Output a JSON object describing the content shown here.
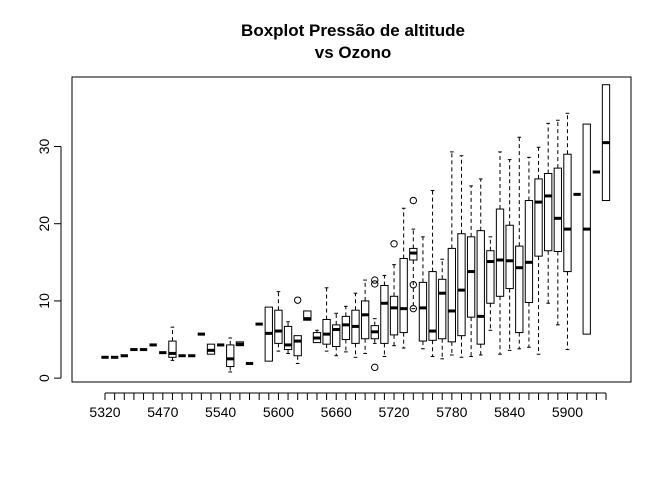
{
  "chart_data": {
    "type": "boxplot",
    "title": "Boxplot Pressão de altitude",
    "subtitle": "vs Ozono",
    "xlabel": "",
    "ylabel": "",
    "ylim": [
      -0.5,
      39
    ],
    "y_ticks": [
      0,
      10,
      20,
      30
    ],
    "x_tick_labels": [
      "5320",
      "5470",
      "5540",
      "5600",
      "5660",
      "5720",
      "5780",
      "5840",
      "5900"
    ],
    "grid": false,
    "legend": "none",
    "boxes": [
      {
        "min": 2.7,
        "q1": 2.7,
        "median": 2.7,
        "q3": 2.7,
        "max": 2.7,
        "outliers": []
      },
      {
        "min": 2.7,
        "q1": 2.7,
        "median": 2.7,
        "q3": 2.7,
        "max": 2.7,
        "outliers": []
      },
      {
        "min": 2.9,
        "q1": 2.9,
        "median": 2.9,
        "q3": 2.9,
        "max": 2.9,
        "outliers": []
      },
      {
        "min": 3.7,
        "q1": 3.7,
        "median": 3.7,
        "q3": 3.7,
        "max": 3.7,
        "outliers": []
      },
      {
        "min": 3.7,
        "q1": 3.7,
        "median": 3.7,
        "q3": 3.7,
        "max": 3.7,
        "outliers": []
      },
      {
        "min": 4.3,
        "q1": 4.3,
        "median": 4.3,
        "q3": 4.3,
        "max": 4.3,
        "outliers": []
      },
      {
        "min": 3.3,
        "q1": 3.3,
        "median": 3.3,
        "q3": 3.3,
        "max": 3.3,
        "outliers": []
      },
      {
        "min": 2.3,
        "q1": 2.7,
        "median": 3.2,
        "q3": 4.8,
        "max": 6.6,
        "outliers": []
      },
      {
        "min": 2.9,
        "q1": 2.9,
        "median": 2.9,
        "q3": 2.9,
        "max": 2.9,
        "outliers": []
      },
      {
        "min": 2.9,
        "q1": 2.9,
        "median": 2.9,
        "q3": 2.9,
        "max": 2.9,
        "outliers": []
      },
      {
        "min": 5.7,
        "q1": 5.7,
        "median": 5.7,
        "q3": 5.7,
        "max": 5.7,
        "outliers": []
      },
      {
        "min": 3.1,
        "q1": 3.1,
        "median": 3.6,
        "q3": 4.4,
        "max": 4.4,
        "outliers": []
      },
      {
        "min": 4.3,
        "q1": 4.3,
        "median": 4.3,
        "q3": 4.3,
        "max": 4.3,
        "outliers": []
      },
      {
        "min": 0.8,
        "q1": 1.5,
        "median": 2.5,
        "q3": 4.3,
        "max": 5.2,
        "outliers": []
      },
      {
        "min": 4.2,
        "q1": 4.2,
        "median": 4.4,
        "q3": 4.7,
        "max": 4.7,
        "outliers": []
      },
      {
        "min": 1.9,
        "q1": 1.9,
        "median": 1.9,
        "q3": 1.9,
        "max": 1.9,
        "outliers": []
      },
      {
        "min": 7.0,
        "q1": 7.0,
        "median": 7.0,
        "q3": 7.0,
        "max": 7.0,
        "outliers": []
      },
      {
        "min": 2.2,
        "q1": 2.2,
        "median": 5.8,
        "q3": 9.2,
        "max": 9.2,
        "outliers": []
      },
      {
        "min": 3.5,
        "q1": 4.5,
        "median": 6.1,
        "q3": 8.8,
        "max": 11.2,
        "outliers": []
      },
      {
        "min": 3.2,
        "q1": 3.7,
        "median": 4.3,
        "q3": 6.7,
        "max": 7.3,
        "outliers": []
      },
      {
        "min": 1.9,
        "q1": 2.9,
        "median": 4.8,
        "q3": 5.5,
        "max": 5.5,
        "outliers": [
          10.1
        ]
      },
      {
        "min": 7.5,
        "q1": 7.5,
        "median": 7.7,
        "q3": 8.7,
        "max": 8.7,
        "outliers": []
      },
      {
        "min": 4.6,
        "q1": 4.6,
        "median": 5.2,
        "q3": 5.9,
        "max": 6.2,
        "outliers": []
      },
      {
        "min": 3.5,
        "q1": 4.4,
        "median": 5.7,
        "q3": 7.6,
        "max": 11.7,
        "outliers": []
      },
      {
        "min": 2.9,
        "q1": 4.1,
        "median": 6.3,
        "q3": 6.9,
        "max": 8.4,
        "outliers": []
      },
      {
        "min": 3.4,
        "q1": 5.0,
        "median": 6.9,
        "q3": 8.0,
        "max": 9.3,
        "outliers": []
      },
      {
        "min": 2.7,
        "q1": 4.5,
        "median": 6.7,
        "q3": 8.8,
        "max": 11.0,
        "outliers": []
      },
      {
        "min": 3.2,
        "q1": 5.1,
        "median": 8.2,
        "q3": 10.0,
        "max": 12.7,
        "outliers": []
      },
      {
        "min": 4.5,
        "q1": 5.1,
        "median": 6.0,
        "q3": 6.8,
        "max": 7.7,
        "outliers": [
          1.4,
          12.2,
          12.7
        ]
      },
      {
        "min": 2.8,
        "q1": 4.5,
        "median": 9.7,
        "q3": 12.0,
        "max": 13.3,
        "outliers": []
      },
      {
        "min": 4.2,
        "q1": 5.6,
        "median": 9.1,
        "q3": 10.6,
        "max": 14.7,
        "outliers": [
          17.4
        ]
      },
      {
        "min": 3.9,
        "q1": 5.9,
        "median": 9.0,
        "q3": 15.5,
        "max": 22.0,
        "outliers": []
      },
      {
        "min": 9.0,
        "q1": 15.3,
        "median": 16.2,
        "q3": 16.8,
        "max": 19.3,
        "outliers": [
          23.0,
          12.1,
          9.0
        ]
      },
      {
        "min": 3.8,
        "q1": 4.8,
        "median": 9.1,
        "q3": 12.4,
        "max": 18.3,
        "outliers": []
      },
      {
        "min": 2.8,
        "q1": 4.9,
        "median": 6.1,
        "q3": 13.8,
        "max": 24.3,
        "outliers": []
      },
      {
        "min": 2.5,
        "q1": 5.1,
        "median": 11.0,
        "q3": 12.8,
        "max": 15.4,
        "outliers": []
      },
      {
        "min": 3.0,
        "q1": 4.7,
        "median": 8.7,
        "q3": 16.8,
        "max": 29.3,
        "outliers": []
      },
      {
        "min": 2.7,
        "q1": 5.5,
        "median": 11.4,
        "q3": 18.7,
        "max": 28.8,
        "outliers": []
      },
      {
        "min": 2.8,
        "q1": 7.9,
        "median": 13.8,
        "q3": 18.3,
        "max": 24.9,
        "outliers": []
      },
      {
        "min": 3.0,
        "q1": 4.4,
        "median": 8.0,
        "q3": 19.1,
        "max": 25.8,
        "outliers": []
      },
      {
        "min": 6.2,
        "q1": 9.7,
        "median": 15.1,
        "q3": 16.5,
        "max": 18.3,
        "outliers": []
      },
      {
        "min": 3.1,
        "q1": 10.6,
        "median": 15.3,
        "q3": 21.9,
        "max": 29.3,
        "outliers": []
      },
      {
        "min": 3.6,
        "q1": 11.6,
        "median": 15.2,
        "q3": 19.8,
        "max": 28.3,
        "outliers": []
      },
      {
        "min": 3.8,
        "q1": 5.9,
        "median": 14.3,
        "q3": 17.1,
        "max": 31.2,
        "outliers": []
      },
      {
        "min": 4.0,
        "q1": 9.8,
        "median": 15.0,
        "q3": 23.0,
        "max": 28.6,
        "outliers": []
      },
      {
        "min": 3.1,
        "q1": 15.8,
        "median": 22.8,
        "q3": 25.8,
        "max": 29.9,
        "outliers": []
      },
      {
        "min": 9.7,
        "q1": 16.5,
        "median": 23.6,
        "q3": 26.5,
        "max": 33.0,
        "outliers": []
      },
      {
        "min": 6.9,
        "q1": 16.4,
        "median": 20.7,
        "q3": 27.2,
        "max": 33.4,
        "outliers": []
      },
      {
        "min": 3.7,
        "q1": 13.8,
        "median": 19.3,
        "q3": 29.0,
        "max": 34.3,
        "outliers": []
      },
      {
        "min": 23.8,
        "q1": 23.8,
        "median": 23.8,
        "q3": 23.8,
        "max": 23.8,
        "outliers": []
      },
      {
        "min": 5.7,
        "q1": 5.7,
        "median": 19.3,
        "q3": 32.9,
        "max": 32.9,
        "outliers": []
      },
      {
        "min": 26.7,
        "q1": 26.7,
        "median": 26.7,
        "q3": 26.7,
        "max": 26.7,
        "outliers": []
      },
      {
        "min": 23.0,
        "q1": 23.0,
        "median": 30.5,
        "q3": 38.0,
        "max": 38.0,
        "outliers": []
      }
    ]
  }
}
